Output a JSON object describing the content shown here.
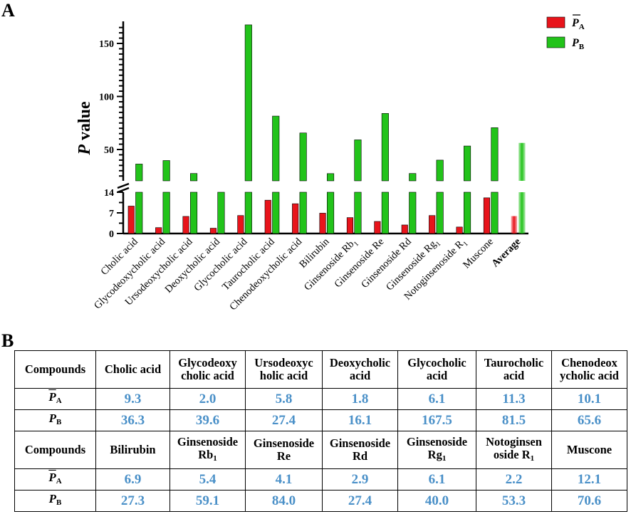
{
  "panels": {
    "a": "A",
    "b": "B"
  },
  "colors": {
    "pa": "#e8141b",
    "pb": "#22c31a",
    "value_text": "#4a90c8"
  },
  "chart_data": {
    "type": "bar",
    "title": "",
    "xlabel": "",
    "ylabel": "P value",
    "ylabel_italic": "P",
    "ylabel_rest": " value",
    "broken_axis": {
      "lower_range": [
        0,
        14
      ],
      "upper_range": [
        22,
        170
      ]
    },
    "y_ticks_lower": [
      "0",
      "7",
      "14"
    ],
    "y_ticks_upper": [
      "50",
      "100",
      "150"
    ],
    "categories": [
      "Cholic acid",
      "Glycodeoxycholic acid",
      "Ursodeoxycholic acid",
      "Deoxycholic acid",
      "Glycocholic acid",
      "Taurocholic acid",
      "Chenodeoxycholic acid",
      "Bilirubin",
      "Ginsenoside Rb1",
      "Ginsenoside Re",
      "Ginsenoside Rd",
      "Ginsenoside Rg1",
      "Notoginsenoside R1",
      "Muscone",
      "Average"
    ],
    "series": [
      {
        "name": "P̄A",
        "legend_main": "P",
        "legend_sub": "A",
        "values": [
          9.3,
          2.0,
          5.8,
          1.8,
          6.1,
          11.3,
          10.1,
          6.9,
          5.4,
          4.1,
          2.9,
          6.1,
          2.2,
          12.1,
          5.9
        ]
      },
      {
        "name": "PB",
        "legend_main": "P",
        "legend_sub": "B",
        "values": [
          36.3,
          39.6,
          27.4,
          16.1,
          167.5,
          81.5,
          65.6,
          27.3,
          59.1,
          84.0,
          27.4,
          40.0,
          53.3,
          70.6,
          56.2
        ]
      }
    ],
    "legend_position": "top-right"
  },
  "table": {
    "compounds_label": "Compounds",
    "pa_label": "P",
    "pa_sub": "A",
    "pb_label": "P",
    "pb_sub": "B",
    "group1": {
      "names": [
        {
          "l1": "Cholic acid",
          "l2": "",
          "sub": ""
        },
        {
          "l1": "Glycodeoxy",
          "l2": "cholic acid",
          "sub": ""
        },
        {
          "l1": "Ursodeoxyc",
          "l2": "holic acid",
          "sub": ""
        },
        {
          "l1": "Deoxycholic",
          "l2": "acid",
          "sub": ""
        },
        {
          "l1": "Glycocholic",
          "l2": "acid",
          "sub": ""
        },
        {
          "l1": "Taurocholic",
          "l2": "acid",
          "sub": ""
        },
        {
          "l1": "Chenodeox",
          "l2": "ycholic acid",
          "sub": ""
        }
      ],
      "pa": [
        "9.3",
        "2.0",
        "5.8",
        "1.8",
        "6.1",
        "11.3",
        "10.1"
      ],
      "pb": [
        "36.3",
        "39.6",
        "27.4",
        "16.1",
        "167.5",
        "81.5",
        "65.6"
      ]
    },
    "group2": {
      "names": [
        {
          "l1": "Bilirubin",
          "l2": "",
          "sub": ""
        },
        {
          "l1": "Ginsenoside",
          "l2": "Rb",
          "sub": "1"
        },
        {
          "l1": "Ginsenoside",
          "l2": "Re",
          "sub": ""
        },
        {
          "l1": "Ginsenoside",
          "l2": "Rd",
          "sub": ""
        },
        {
          "l1": "Ginsenoside",
          "l2": "Rg",
          "sub": "1"
        },
        {
          "l1": "Notoginsen",
          "l2": "oside R",
          "sub": "1"
        },
        {
          "l1": "Muscone",
          "l2": "",
          "sub": ""
        }
      ],
      "pa": [
        "6.9",
        "5.4",
        "4.1",
        "2.9",
        "6.1",
        "2.2",
        "12.1"
      ],
      "pb": [
        "27.3",
        "59.1",
        "84.0",
        "27.4",
        "40.0",
        "53.3",
        "70.6"
      ]
    }
  }
}
